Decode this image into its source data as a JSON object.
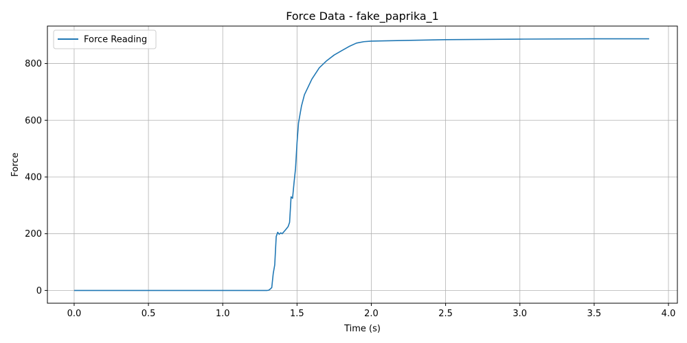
{
  "chart_data": {
    "type": "line",
    "title": "Force Data - fake_paprika_1",
    "xlabel": "Time (s)",
    "ylabel": "Force",
    "xlim": [
      -0.18,
      4.06
    ],
    "ylim": [
      -45,
      932
    ],
    "x_ticks": [
      0.0,
      0.5,
      1.0,
      1.5,
      2.0,
      2.5,
      3.0,
      3.5,
      4.0
    ],
    "x_tick_labels": [
      "0.0",
      "0.5",
      "1.0",
      "1.5",
      "2.0",
      "2.5",
      "3.0",
      "3.5",
      "4.0"
    ],
    "y_ticks": [
      0,
      200,
      400,
      600,
      800
    ],
    "y_tick_labels": [
      "0",
      "200",
      "400",
      "600",
      "800"
    ],
    "grid": true,
    "legend_position": "top-left",
    "series": [
      {
        "name": "Force Reading",
        "color": "#1f77b4",
        "points": [
          [
            0.0,
            0
          ],
          [
            0.5,
            0
          ],
          [
            1.0,
            0
          ],
          [
            1.3,
            0
          ],
          [
            1.31,
            1
          ],
          [
            1.32,
            5
          ],
          [
            1.33,
            10
          ],
          [
            1.34,
            60
          ],
          [
            1.35,
            90
          ],
          [
            1.36,
            190
          ],
          [
            1.37,
            205
          ],
          [
            1.38,
            198
          ],
          [
            1.39,
            203
          ],
          [
            1.4,
            200
          ],
          [
            1.42,
            212
          ],
          [
            1.44,
            225
          ],
          [
            1.45,
            240
          ],
          [
            1.46,
            330
          ],
          [
            1.47,
            325
          ],
          [
            1.48,
            380
          ],
          [
            1.49,
            430
          ],
          [
            1.5,
            520
          ],
          [
            1.51,
            590
          ],
          [
            1.53,
            650
          ],
          [
            1.55,
            690
          ],
          [
            1.6,
            745
          ],
          [
            1.65,
            785
          ],
          [
            1.7,
            810
          ],
          [
            1.75,
            830
          ],
          [
            1.8,
            845
          ],
          [
            1.85,
            860
          ],
          [
            1.9,
            872
          ],
          [
            1.95,
            877
          ],
          [
            2.0,
            879
          ],
          [
            2.2,
            881
          ],
          [
            2.5,
            884
          ],
          [
            3.0,
            886
          ],
          [
            3.5,
            887
          ],
          [
            3.87,
            887
          ]
        ]
      }
    ]
  }
}
